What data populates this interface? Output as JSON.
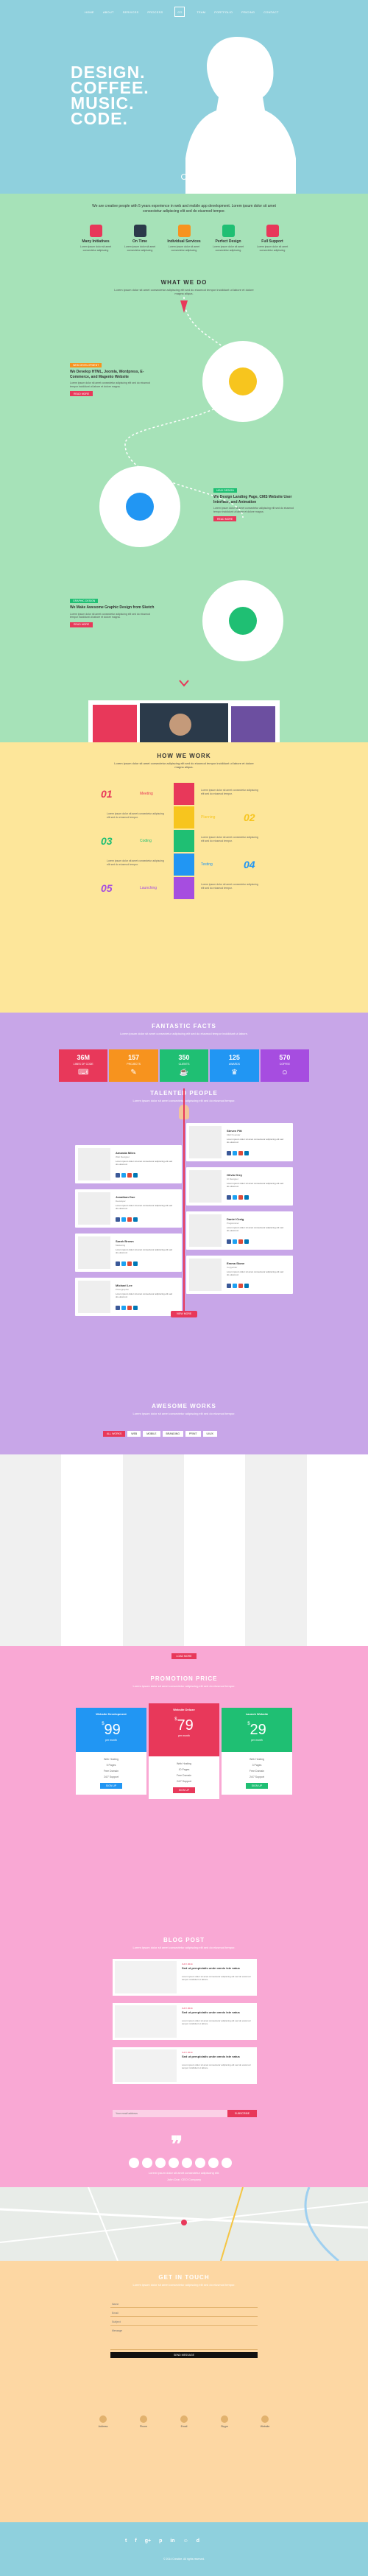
{
  "nav": {
    "left": [
      "HOME",
      "ABOUT",
      "SERVICES",
      "PROCESS"
    ],
    "logo": "CO",
    "right": [
      "TEAM",
      "PORTFOLIO",
      "PRICING",
      "CONTACT"
    ]
  },
  "hero": {
    "line1": "DESIGN.",
    "line2": "COFFEE.",
    "line3": "MUSIC.",
    "line4": "CODE."
  },
  "intro": {
    "text": "We are creative people with 5 years experience in web and mobile app development. Lorem ipsum dolor sit amet consectetur adipiscing elit sed do eiusmod tempor."
  },
  "services": [
    {
      "title": "Many Initiatives",
      "desc": "Lorem ipsum dolor sit amet consectetur adipiscing",
      "color": "#e8385a"
    },
    {
      "title": "On Time",
      "desc": "Lorem ipsum dolor sit amet consectetur adipiscing",
      "color": "#2b3a4a"
    },
    {
      "title": "Individual Services",
      "desc": "Lorem ipsum dolor sit amet consectetur adipiscing",
      "color": "#f7931e"
    },
    {
      "title": "Perfect Design",
      "desc": "Lorem ipsum dolor sit amet consectetur adipiscing",
      "color": "#1fbf73"
    },
    {
      "title": "Full Support",
      "desc": "Lorem ipsum dolor sit amet consectetur adipiscing",
      "color": "#e8385a"
    }
  ],
  "what_we_do": {
    "title": "WHAT WE DO",
    "sub": "Lorem ipsum dolor sit amet consectetur adipiscing elit sed do eiusmod tempor incididunt ut labore et dolore magna aliqua.",
    "blocks": [
      {
        "tag": "WEB DEVELOPMENT",
        "tag_color": "#f7931e",
        "title": "We Develop HTML, Joomla, Wordpress, E-Commerce, and Magento Website",
        "text": "Lorem ipsum dolor sit amet consectetur adipiscing elit sed do eiusmod tempor incididunt ut labore et dolore magna.",
        "btn": "READ MORE"
      },
      {
        "tag": "UI/UX DESIGN",
        "tag_color": "#1fbf73",
        "title": "We Design Landing Page, CMS Website User Interface, and Animation",
        "text": "Lorem ipsum dolor sit amet consectetur adipiscing elit sed do eiusmod tempor incididunt ut labore et dolore magna.",
        "btn": "READ MORE"
      },
      {
        "tag": "GRAPHIC DESIGN",
        "tag_color": "#1fbf73",
        "title": "We Make Awesome Graphic Design from Sketch",
        "text": "Lorem ipsum dolor sit amet consectetur adipiscing elit sed do eiusmod tempor incididunt ut labore et dolore magna.",
        "btn": "READ MORE"
      }
    ]
  },
  "how": {
    "title": "HOW WE WORK",
    "sub": "Lorem ipsum dolor sit amet consectetur adipiscing elit sed do eiusmod tempor incididunt ut labore et dolore magna aliqua.",
    "steps": [
      {
        "num": "01",
        "label": "Meeting",
        "color": "#e8385a"
      },
      {
        "num": "02",
        "label": "Planning",
        "color": "#f7c51e"
      },
      {
        "num": "03",
        "label": "Coding",
        "color": "#1fbf73"
      },
      {
        "num": "04",
        "label": "Testing",
        "color": "#2196f3"
      },
      {
        "num": "05",
        "label": "Launching",
        "color": "#a64de0"
      }
    ],
    "step_text": "Lorem ipsum dolor sit amet consectetur adipiscing elit sed do eiusmod tempor."
  },
  "facts": {
    "title": "FANTASTIC FACTS",
    "sub": "Lorem ipsum dolor sit amet consectetur adipiscing elit sed do eiusmod tempor incididunt ut labore.",
    "items": [
      {
        "n": "36M",
        "l": "LINES OF CODE",
        "color": "#e8385a",
        "icon": "⌨"
      },
      {
        "n": "157",
        "l": "PROJECTS",
        "color": "#f7931e",
        "icon": "✎"
      },
      {
        "n": "350",
        "l": "CLIENTS",
        "color": "#1fbf73",
        "icon": "☕"
      },
      {
        "n": "125",
        "l": "AWARDS",
        "color": "#2196f3",
        "icon": "♛"
      },
      {
        "n": "570",
        "l": "COFFEE",
        "color": "#a64de0",
        "icon": "☺"
      }
    ]
  },
  "people": {
    "title": "TALENTED PEOPLE",
    "sub": "Lorem ipsum dolor sit amet consectetur adipiscing elit sed do eiusmod tempor.",
    "left": [
      {
        "name": "Amanda Miles",
        "role": "Web Designer",
        "bio": "Lorem ipsum dolor sit amet consectetur adipiscing elit sed do eiusmod."
      },
      {
        "name": "Jonathan Doe",
        "role": "Developer",
        "bio": "Lorem ipsum dolor sit amet consectetur adipiscing elit sed do eiusmod."
      },
      {
        "name": "Sarah Brown",
        "role": "Marketing",
        "bio": "Lorem ipsum dolor sit amet consectetur adipiscing elit sed do eiusmod."
      },
      {
        "name": "Michael Lee",
        "role": "Photographer",
        "bio": "Lorem ipsum dolor sit amet consectetur adipiscing elit sed do eiusmod."
      }
    ],
    "right": [
      {
        "name": "Steven Pitt",
        "role": "CEO Founder",
        "bio": "Lorem ipsum dolor sit amet consectetur adipiscing elit sed do eiusmod."
      },
      {
        "name": "Olivia Grey",
        "role": "UI Designer",
        "bio": "Lorem ipsum dolor sit amet consectetur adipiscing elit sed do eiusmod."
      },
      {
        "name": "Daniel Craig",
        "role": "Programmer",
        "bio": "Lorem ipsum dolor sit amet consectetur adipiscing elit sed do eiusmod."
      },
      {
        "name": "Emma Stone",
        "role": "Copywriter",
        "bio": "Lorem ipsum dolor sit amet consectetur adipiscing elit sed do eiusmod."
      }
    ],
    "more_btn": "VIEW MORE"
  },
  "works": {
    "title": "AWESOME WORKS",
    "sub": "Lorem ipsum dolor sit amet consectetur adipiscing elit sed do eiusmod tempor.",
    "filters": [
      "ALL WORKS",
      "WEB",
      "MOBILE",
      "BRANDING",
      "PRINT",
      "UI/UX"
    ]
  },
  "pricing": {
    "load_more": "LOAD MORE",
    "title": "PROMOTION PRICE",
    "sub": "Lorem ipsum dolor sit amet consectetur adipiscing elit sed do eiusmod tempor.",
    "plans": [
      {
        "name": "Website Development",
        "cur": "$",
        "price": "99",
        "per": "per month",
        "color": "#2196f3",
        "features": [
          "Web Hosting",
          "5 Pages",
          "Free Domain",
          "24/7 Support"
        ],
        "btn": "SIGN UP"
      },
      {
        "name": "Website Deluxe",
        "cur": "$",
        "price": "79",
        "per": "per month",
        "color": "#e8385a",
        "features": [
          "Web Hosting",
          "10 Pages",
          "Free Domain",
          "24/7 Support"
        ],
        "btn": "SIGN UP"
      },
      {
        "name": "Launch Website",
        "cur": "$",
        "price": "29",
        "per": "per month",
        "color": "#1fbf73",
        "features": [
          "Web Hosting",
          "3 Pages",
          "Free Domain",
          "24/7 Support"
        ],
        "btn": "SIGN UP"
      }
    ]
  },
  "blog": {
    "title": "BLOG POST",
    "sub": "Lorem ipsum dolor sit amet consectetur adipiscing elit sed do eiusmod tempor.",
    "posts": [
      {
        "date": "JULY 2014",
        "title": "Sed ut perspiciatis unde omnis iste natus",
        "text": "Lorem ipsum dolor sit amet consectetur adipiscing elit sed do eiusmod tempor incididunt ut labore."
      },
      {
        "date": "JULY 2014",
        "title": "Sed ut perspiciatis unde omnis iste natus",
        "text": "Lorem ipsum dolor sit amet consectetur adipiscing elit sed do eiusmod tempor incididunt ut labore."
      },
      {
        "date": "JULY 2014",
        "title": "Sed ut perspiciatis unde omnis iste natus",
        "text": "Lorem ipsum dolor sit amet consectetur adipiscing elit sed do eiusmod tempor incididunt ut labore."
      }
    ],
    "newsletter_placeholder": "Your email address",
    "newsletter_btn": "SUBSCRIBE",
    "quote_mark": "❞",
    "quote_text": "Lorem ipsum dolor sit amet consectetur adipiscing elit.",
    "quote_author": "John Doe, CEO Company"
  },
  "contact": {
    "title": "GET IN TOUCH",
    "sub": "Lorem ipsum dolor sit amet consectetur adipiscing elit sed do eiusmod tempor.",
    "name_ph": "Name",
    "email_ph": "Email",
    "subject_ph": "Subject",
    "message_ph": "Message",
    "send": "SEND MESSAGE",
    "info": [
      "Address",
      "Phone",
      "Email",
      "Skype",
      "Website"
    ]
  },
  "footer": {
    "social": [
      "t",
      "f",
      "g+",
      "p",
      "in",
      "☺",
      "d"
    ],
    "copy": "© 2014 Creative. All rights reserved."
  }
}
